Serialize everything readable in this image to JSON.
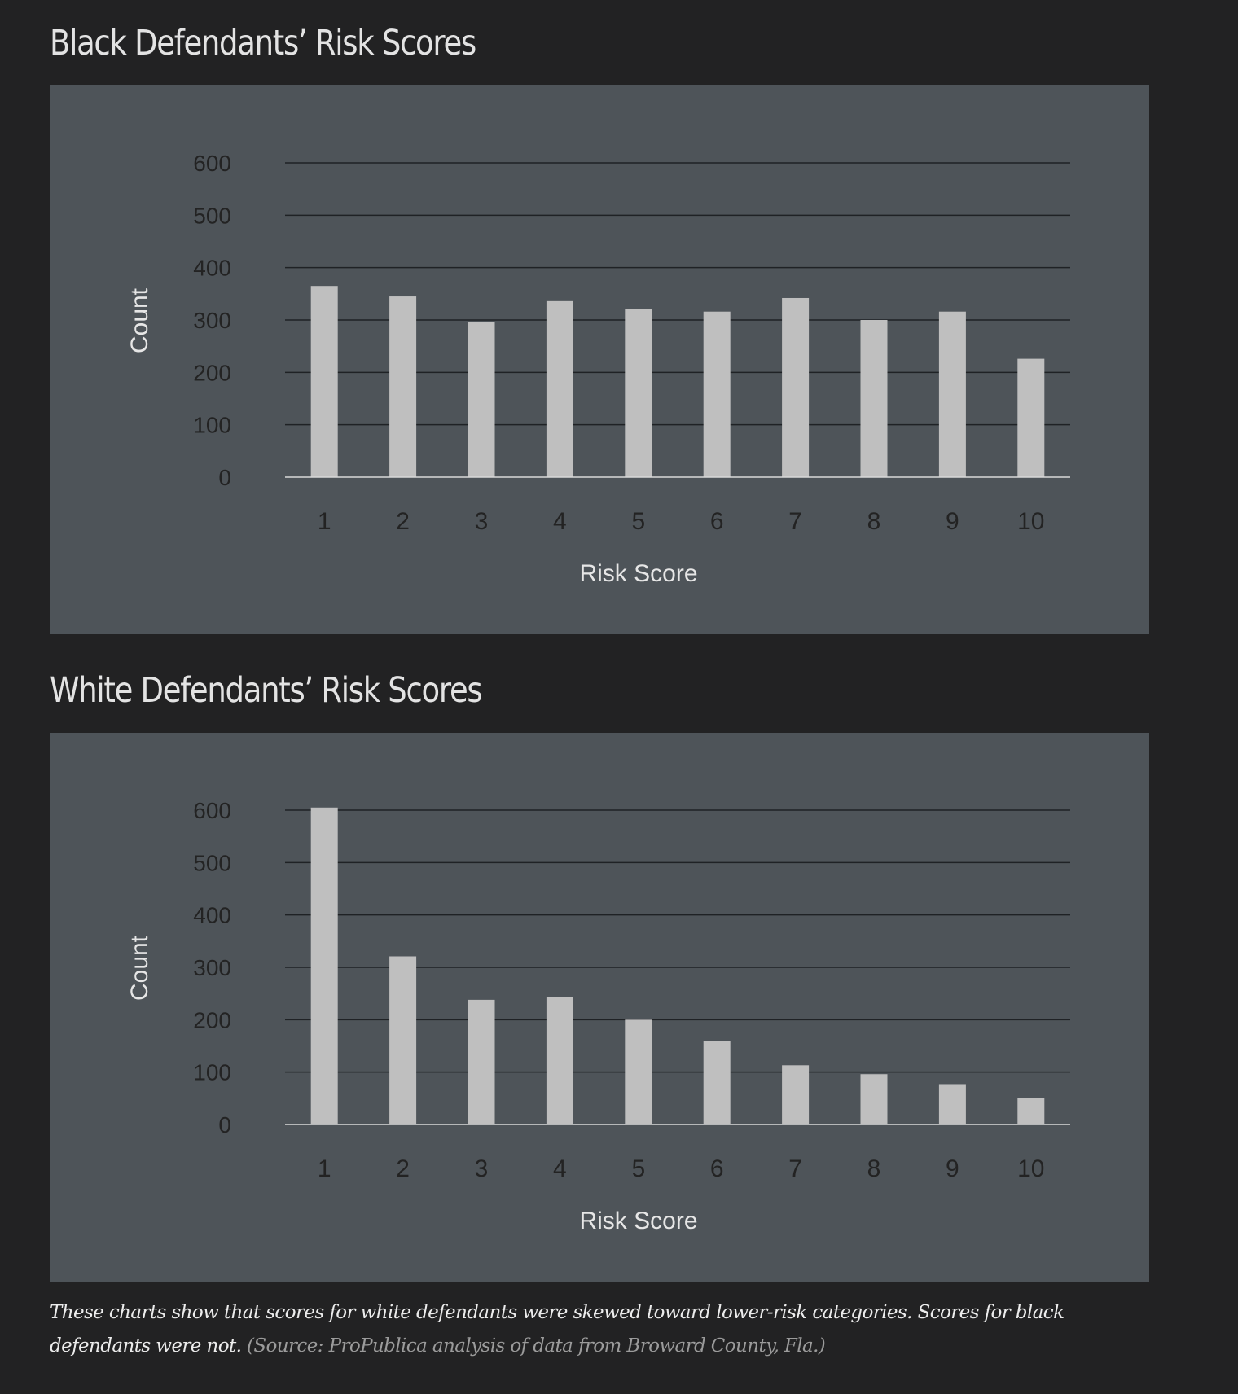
{
  "charts_header": {
    "black_title": "Black Defendants’ Risk Scores",
    "white_title": "White Defendants’ Risk Scores"
  },
  "caption": {
    "text": "These charts show that scores for white defendants were skewed toward lower-risk categories. Scores for black defendants were not.",
    "source": "(Source: ProPublica analysis of data from Broward County, Fla.)"
  },
  "colors": {
    "page_background": "#222223",
    "panel_background": "#4e5459",
    "bar": "#bfbfbf",
    "gridline": "#1f2225",
    "axis_text": "#232323",
    "axis_title_text": "#e6e6e6"
  },
  "chart_data": [
    {
      "type": "bar",
      "title": "Black Defendants’ Risk Scores",
      "xlabel": "Risk Score",
      "ylabel": "Count",
      "categories": [
        "1",
        "2",
        "3",
        "4",
        "5",
        "6",
        "7",
        "8",
        "9",
        "10"
      ],
      "values": [
        365,
        345,
        296,
        336,
        321,
        316,
        342,
        300,
        316,
        226
      ],
      "ylim": [
        0,
        600
      ],
      "yticks": [
        "0",
        "100",
        "200",
        "300",
        "400",
        "500",
        "600"
      ],
      "grid": true,
      "legend": "none"
    },
    {
      "type": "bar",
      "title": "White Defendants’ Risk Scores",
      "xlabel": "Risk Score",
      "ylabel": "Count",
      "categories": [
        "1",
        "2",
        "3",
        "4",
        "5",
        "6",
        "7",
        "8",
        "9",
        "10"
      ],
      "values": [
        605,
        321,
        238,
        243,
        200,
        160,
        113,
        96,
        77,
        50
      ],
      "ylim": [
        0,
        600
      ],
      "yticks": [
        "0",
        "100",
        "200",
        "300",
        "400",
        "500",
        "600"
      ],
      "grid": true,
      "legend": "none"
    }
  ]
}
